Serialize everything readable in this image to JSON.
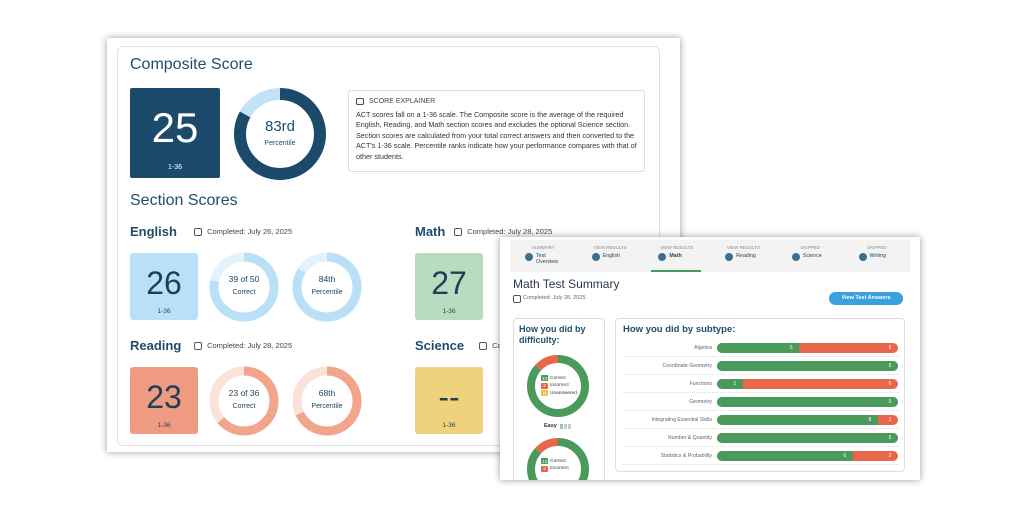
{
  "composite": {
    "title": "Composite Score",
    "score": 25,
    "scale": "1-36",
    "percentile": {
      "value": 83,
      "label": "83rd"
    },
    "percentile_caption": "Percentile"
  },
  "explainer": {
    "heading": "SCORE EXPLAINER",
    "text": "ACT scores fall on a 1-36 scale. The Composite score is the average of the required English, Reading, and Math section scores and excludes the optional Science section. Section scores are calculated from your total correct answers and then converted to the ACT's 1-36 scale. Percentile ranks indicate how your performance compares with that of other students."
  },
  "sections_title": "Section Scores",
  "sections": [
    {
      "name": "English",
      "completed": "Completed: July 26, 2025",
      "score": 26,
      "scale": "1-36",
      "correct": {
        "value": 39,
        "total": 50,
        "label": "39 of 50"
      },
      "correct_caption": "Correct",
      "percentile": {
        "value": 84,
        "label": "84th"
      },
      "percentile_caption": "Percentile"
    },
    {
      "name": "Math",
      "completed": "Completed: July 28, 2025",
      "score": 27,
      "scale": "1-36"
    },
    {
      "name": "Reading",
      "completed": "Completed: July 28, 2025",
      "score": 23,
      "scale": "1-36",
      "correct": {
        "value": 23,
        "total": 36,
        "label": "23 of 36"
      },
      "correct_caption": "Correct",
      "percentile": {
        "value": 68,
        "label": "68th"
      },
      "percentile_caption": "Percentile"
    },
    {
      "name": "Science",
      "completed": "Completed",
      "score": "--",
      "scale": "1-36"
    }
  ],
  "tabs": [
    {
      "status": "SUMMARY",
      "label": "Test Overview"
    },
    {
      "status": "VIEW RESULTS",
      "label": "English"
    },
    {
      "status": "VIEW RESULTS",
      "label": "Math",
      "active": true
    },
    {
      "status": "VIEW RESULTS",
      "label": "Reading"
    },
    {
      "status": "SKIPPED",
      "label": "Science"
    },
    {
      "status": "SKIPPED",
      "label": "Writing"
    }
  ],
  "math_summary": {
    "title": "Math Test Summary",
    "completed": "Completed: July 28, 2025",
    "button": "View Test Answers",
    "difficulty": {
      "heading": "How you did by difficulty:",
      "legend": {
        "correct": "Correct",
        "incorrect": "Incorrect",
        "unanswered": "Unanswered"
      },
      "groups": [
        {
          "name": "Easy",
          "correct": 13,
          "incorrect": 2,
          "unanswered": 0
        },
        {
          "correct": 13,
          "incorrect": 2
        }
      ]
    },
    "subtype": {
      "heading": "How you did by subtype:",
      "rows": [
        {
          "name": "Algebra",
          "correct": 5,
          "incorrect": 6
        },
        {
          "name": "Coordinate Geometry",
          "correct": 5
        },
        {
          "name": "Functions",
          "correct": 1,
          "incorrect": 6
        },
        {
          "name": "Geometry",
          "correct": 5
        },
        {
          "name": "Integrating Essential Skills",
          "correct": 8,
          "incorrect": 1
        },
        {
          "name": "Number & Quantity",
          "correct": 5
        },
        {
          "name": "Statistics & Probability",
          "correct": 6,
          "incorrect": 2
        }
      ]
    }
  }
}
